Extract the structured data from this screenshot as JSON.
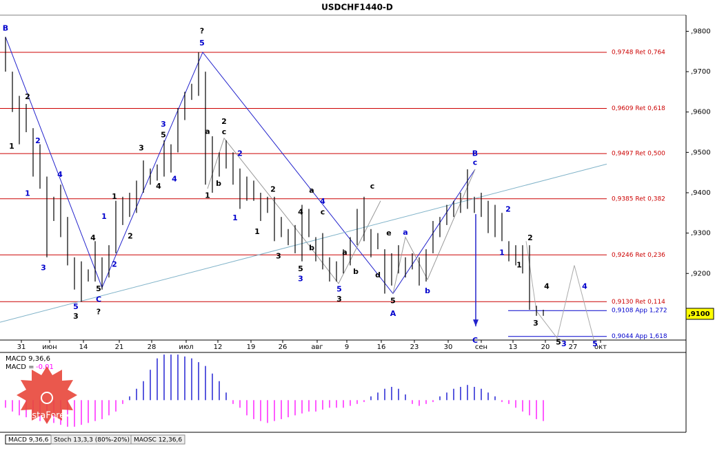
{
  "chart_data": {
    "type": "ohlc",
    "title": "USDCHF1440-D",
    "high": [
      0.9786,
      0.97,
      0.964,
      0.962,
      0.956,
      0.952,
      0.944,
      0.939,
      0.942,
      0.934,
      0.924,
      0.923,
      0.921,
      0.928,
      0.924,
      0.927,
      0.938,
      0.939,
      0.94,
      0.943,
      0.948,
      0.946,
      0.947,
      0.953,
      0.952,
      0.961,
      0.965,
      0.967,
      0.9748,
      0.97,
      0.954,
      0.95,
      0.953,
      0.95,
      0.946,
      0.944,
      0.943,
      0.94,
      0.939,
      0.939,
      0.934,
      0.931,
      0.932,
      0.937,
      0.936,
      0.929,
      0.93,
      0.924,
      0.923,
      0.926,
      0.929,
      0.936,
      0.939,
      0.931,
      0.93,
      0.926,
      0.925,
      0.927,
      0.924,
      0.925,
      0.924,
      0.926,
      0.933,
      0.934,
      0.937,
      0.938,
      0.94,
      0.9458,
      0.939,
      0.94,
      0.938,
      0.937,
      0.935,
      0.928,
      0.927,
      0.927,
      0.927,
      0.912,
      0.911
    ],
    "low": [
      0.97,
      0.96,
      0.952,
      0.955,
      0.944,
      0.941,
      0.924,
      0.933,
      0.929,
      0.922,
      0.916,
      0.913,
      0.918,
      0.918,
      0.916,
      0.919,
      0.925,
      0.932,
      0.934,
      0.935,
      0.94,
      0.942,
      0.943,
      0.944,
      0.945,
      0.95,
      0.958,
      0.963,
      0.964,
      0.942,
      0.94,
      0.944,
      0.946,
      0.942,
      0.936,
      0.938,
      0.938,
      0.933,
      0.935,
      0.928,
      0.929,
      0.927,
      0.925,
      0.923,
      0.929,
      0.923,
      0.921,
      0.918,
      0.918,
      0.92,
      0.922,
      0.927,
      0.928,
      0.924,
      0.926,
      0.915,
      0.917,
      0.92,
      0.919,
      0.921,
      0.917,
      0.918,
      0.925,
      0.929,
      0.932,
      0.934,
      0.935,
      0.936,
      0.935,
      0.934,
      0.93,
      0.929,
      0.928,
      0.923,
      0.922,
      0.92,
      0.911,
      0.9095,
      0.9095
    ],
    "color": "#000000",
    "ylim": [
      0.9035,
      0.984
    ],
    "yticks": [
      {
        "value": 0.98,
        "label": ",9800"
      },
      {
        "value": 0.97,
        "label": ",9700"
      },
      {
        "value": 0.96,
        "label": ",9600"
      },
      {
        "value": 0.95,
        "label": ",9500"
      },
      {
        "value": 0.94,
        "label": ",9400"
      },
      {
        "value": 0.93,
        "label": ",9300"
      },
      {
        "value": 0.92,
        "label": ",9200"
      }
    ],
    "last_price": {
      "value": 0.91,
      "label": ",9100"
    },
    "xticks": [
      {
        "value": 2.3,
        "label": "31"
      },
      {
        "value": 6.4,
        "label": "июн"
      },
      {
        "value": 11.3,
        "label": "14"
      },
      {
        "value": 16.5,
        "label": "21"
      },
      {
        "value": 21.2,
        "label": "28"
      },
      {
        "value": 26.2,
        "label": "июл"
      },
      {
        "value": 30.8,
        "label": "12"
      },
      {
        "value": 35.6,
        "label": "19"
      },
      {
        "value": 40.2,
        "label": "26"
      },
      {
        "value": 45.2,
        "label": "авг"
      },
      {
        "value": 49.5,
        "label": "9"
      },
      {
        "value": 54.5,
        "label": "16"
      },
      {
        "value": 59.3,
        "label": "23"
      },
      {
        "value": 64.2,
        "label": "30"
      },
      {
        "value": 69,
        "label": "сен"
      },
      {
        "value": 73.6,
        "label": "13"
      },
      {
        "value": 78.3,
        "label": "20"
      },
      {
        "value": 82.3,
        "label": "27"
      },
      {
        "value": 86.3,
        "label": "окт"
      }
    ],
    "xlim": [
      -0.8,
      98.7
    ],
    "levels": [
      {
        "value": 0.9748,
        "label": "0,9748 Ret 0,764",
        "color": "#cc0000"
      },
      {
        "value": 0.9609,
        "label": "0,9609 Ret 0,618",
        "color": "#cc0000"
      },
      {
        "value": 0.9497,
        "label": "0,9497 Ret 0,500",
        "color": "#cc0000"
      },
      {
        "value": 0.9385,
        "label": "0,9385 Ret 0,382",
        "color": "#cc0000"
      },
      {
        "value": 0.9246,
        "label": "0,9246 Ret 0,236",
        "color": "#cc0000"
      },
      {
        "value": 0.913,
        "label": "0,9130 Ret 0,114",
        "color": "#cc0000"
      },
      {
        "value": 0.9108,
        "label": "0,9108 App 1,272",
        "color": "#0000cc"
      },
      {
        "value": 0.9044,
        "label": "0,9044 App 1,618",
        "color": "#0000cc"
      }
    ],
    "wave_lines": [
      {
        "color": "#2222cc",
        "points": [
          [
            0,
            0.9786
          ],
          [
            14,
            0.9165
          ],
          [
            28.6,
            0.9748
          ],
          [
            56.2,
            0.915
          ],
          [
            68.1,
            0.9458
          ]
        ]
      },
      {
        "color": "#999999",
        "points": [
          [
            29.3,
            0.941
          ],
          [
            31.7,
            0.9535
          ],
          [
            44,
            0.927
          ],
          [
            48.3,
            0.9175
          ],
          [
            54.4,
            0.938
          ]
        ]
      },
      {
        "color": "#999999",
        "points": [
          [
            56.2,
            0.915
          ],
          [
            58,
            0.929
          ],
          [
            61.2,
            0.9185
          ],
          [
            68.1,
            0.9458
          ]
        ]
      },
      {
        "color": "#aaaaaa",
        "points": [
          [
            75.5,
            0.928
          ],
          [
            77,
            0.9107
          ],
          [
            80,
            0.904
          ],
          [
            82.5,
            0.922
          ],
          [
            85.5,
            0.9025
          ]
        ]
      },
      {
        "color": "#7fb2c8",
        "points": [
          [
            -0.8,
            0.9079
          ],
          [
            87.2,
            0.9471
          ]
        ]
      }
    ],
    "arrow": {
      "color": "#2222cc",
      "from": [
        68.2,
        0.9347
      ],
      "to": [
        68.2,
        0.9069
      ]
    },
    "wave_labels": [
      {
        "text": "B",
        "x": 0,
        "y": 0.9807,
        "color": "#0000cc"
      },
      {
        "text": "2",
        "x": 3.2,
        "y": 0.9637,
        "color": "#000000"
      },
      {
        "text": "1",
        "x": 0.9,
        "y": 0.9514,
        "color": "#000000"
      },
      {
        "text": "2",
        "x": 4.7,
        "y": 0.9528,
        "color": "#0000cc"
      },
      {
        "text": "1",
        "x": 3.2,
        "y": 0.9397,
        "color": "#0000cc"
      },
      {
        "text": "4",
        "x": 7.9,
        "y": 0.9444,
        "color": "#0000cc"
      },
      {
        "text": "3",
        "x": 5.5,
        "y": 0.9213,
        "color": "#0000cc"
      },
      {
        "text": "4",
        "x": 12.7,
        "y": 0.9287,
        "color": "#000000"
      },
      {
        "text": "5",
        "x": 13.5,
        "y": 0.9161,
        "color": "#000000"
      },
      {
        "text": "C",
        "x": 13.5,
        "y": 0.9135,
        "color": "#0000cc"
      },
      {
        "text": "?",
        "x": 13.5,
        "y": 0.9104,
        "color": "#000000"
      },
      {
        "text": "5",
        "x": 10.2,
        "y": 0.9117,
        "color": "#0000cc"
      },
      {
        "text": "3",
        "x": 10.2,
        "y": 0.9093,
        "color": "#000000"
      },
      {
        "text": "1",
        "x": 14.3,
        "y": 0.934,
        "color": "#0000cc"
      },
      {
        "text": "1",
        "x": 15.8,
        "y": 0.939,
        "color": "#000000"
      },
      {
        "text": "2",
        "x": 18.1,
        "y": 0.9292,
        "color": "#000000"
      },
      {
        "text": "2",
        "x": 15.8,
        "y": 0.9222,
        "color": "#0000cc"
      },
      {
        "text": "3",
        "x": 19.7,
        "y": 0.951,
        "color": "#000000"
      },
      {
        "text": "3",
        "x": 22.9,
        "y": 0.9569,
        "color": "#0000cc"
      },
      {
        "text": "5",
        "x": 22.9,
        "y": 0.9542,
        "color": "#000000"
      },
      {
        "text": "4",
        "x": 22.2,
        "y": 0.9415,
        "color": "#000000"
      },
      {
        "text": "4",
        "x": 24.5,
        "y": 0.9433,
        "color": "#0000cc"
      },
      {
        "text": "?",
        "x": 28.5,
        "y": 0.98,
        "color": "#000000"
      },
      {
        "text": "5",
        "x": 28.5,
        "y": 0.977,
        "color": "#0000cc"
      },
      {
        "text": "a",
        "x": 29.3,
        "y": 0.9551,
        "color": "#000000"
      },
      {
        "text": "2",
        "x": 31.7,
        "y": 0.9576,
        "color": "#000000"
      },
      {
        "text": "c",
        "x": 31.7,
        "y": 0.955,
        "color": "#000000"
      },
      {
        "text": "b",
        "x": 30.9,
        "y": 0.9422,
        "color": "#000000"
      },
      {
        "text": "1",
        "x": 29.3,
        "y": 0.9392,
        "color": "#000000"
      },
      {
        "text": "2",
        "x": 34,
        "y": 0.9496,
        "color": "#0000cc"
      },
      {
        "text": "1",
        "x": 33.3,
        "y": 0.9337,
        "color": "#0000cc"
      },
      {
        "text": "2",
        "x": 38.8,
        "y": 0.9408,
        "color": "#000000"
      },
      {
        "text": "1",
        "x": 36.5,
        "y": 0.9303,
        "color": "#000000"
      },
      {
        "text": "3",
        "x": 39.6,
        "y": 0.9242,
        "color": "#000000"
      },
      {
        "text": "4",
        "x": 42.8,
        "y": 0.9351,
        "color": "#000000"
      },
      {
        "text": "a",
        "x": 44.4,
        "y": 0.9405,
        "color": "#000000"
      },
      {
        "text": "4",
        "x": 46,
        "y": 0.9378,
        "color": "#0000cc"
      },
      {
        "text": "c",
        "x": 46,
        "y": 0.9351,
        "color": "#000000"
      },
      {
        "text": "b",
        "x": 44.4,
        "y": 0.9263,
        "color": "#000000"
      },
      {
        "text": "5",
        "x": 42.8,
        "y": 0.9211,
        "color": "#000000"
      },
      {
        "text": "3",
        "x": 42.8,
        "y": 0.9186,
        "color": "#0000cc"
      },
      {
        "text": "a",
        "x": 49.2,
        "y": 0.9252,
        "color": "#000000"
      },
      {
        "text": "b",
        "x": 50.8,
        "y": 0.9204,
        "color": "#000000"
      },
      {
        "text": "5",
        "x": 48.4,
        "y": 0.916,
        "color": "#0000cc"
      },
      {
        "text": "3",
        "x": 48.4,
        "y": 0.9136,
        "color": "#000000"
      },
      {
        "text": "c",
        "x": 53.2,
        "y": 0.9415,
        "color": "#000000"
      },
      {
        "text": "e",
        "x": 55.6,
        "y": 0.9299,
        "color": "#000000"
      },
      {
        "text": "d",
        "x": 54,
        "y": 0.9195,
        "color": "#000000"
      },
      {
        "text": "a",
        "x": 58,
        "y": 0.9301,
        "color": "#0000cc"
      },
      {
        "text": "5",
        "x": 56.2,
        "y": 0.9131,
        "color": "#000000"
      },
      {
        "text": "A",
        "x": 56.2,
        "y": 0.91,
        "color": "#0000cc"
      },
      {
        "text": "b",
        "x": 61.2,
        "y": 0.9156,
        "color": "#0000cc"
      },
      {
        "text": "B",
        "x": 68.1,
        "y": 0.9496,
        "color": "#0000cc"
      },
      {
        "text": "c",
        "x": 68.1,
        "y": 0.9474,
        "color": "#0000cc"
      },
      {
        "text": "C",
        "x": 68.1,
        "y": 0.9033,
        "color": "#0000cc"
      },
      {
        "text": "2",
        "x": 72.9,
        "y": 0.9358,
        "color": "#0000cc"
      },
      {
        "text": "1",
        "x": 72,
        "y": 0.9251,
        "color": "#0000cc"
      },
      {
        "text": "1",
        "x": 74.5,
        "y": 0.922,
        "color": "#000000"
      },
      {
        "text": "2",
        "x": 76.1,
        "y": 0.9287,
        "color": "#000000"
      },
      {
        "text": "3",
        "x": 76.9,
        "y": 0.9076,
        "color": "#000000"
      },
      {
        "text": "4",
        "x": 78.5,
        "y": 0.9167,
        "color": "#000000"
      },
      {
        "text": "4",
        "x": 84,
        "y": 0.9167,
        "color": "#0000cc"
      },
      {
        "text": "5",
        "x": 80.2,
        "y": 0.9029,
        "color": "#000000"
      },
      {
        "text": "3",
        "x": 81,
        "y": 0.9025,
        "color": "#0000cc"
      },
      {
        "text": "5",
        "x": 85.5,
        "y": 0.9025,
        "color": "#0000cc"
      }
    ],
    "macd": {
      "label": "MACD 9,36,6",
      "readout_label": "MACD =",
      "readout_value": -0.01,
      "ylim": [
        -0.0081,
        0.0122
      ],
      "pos_color": "#0000cc",
      "neg_color": "#ff00ff",
      "values": [
        -0.002,
        -0.003,
        -0.004,
        -0.0045,
        -0.005,
        -0.0055,
        -0.006,
        -0.006,
        -0.0065,
        -0.007,
        -0.007,
        -0.0065,
        -0.006,
        -0.0055,
        -0.005,
        -0.004,
        -0.003,
        -0.001,
        0.001,
        0.003,
        0.005,
        0.008,
        0.011,
        0.012,
        0.012,
        0.012,
        0.0115,
        0.011,
        0.01,
        0.009,
        0.007,
        0.005,
        0.002,
        -0.001,
        -0.002,
        -0.004,
        -0.005,
        -0.0055,
        -0.006,
        -0.0055,
        -0.005,
        -0.0045,
        -0.004,
        -0.0035,
        -0.003,
        -0.003,
        -0.0025,
        -0.002,
        -0.002,
        -0.002,
        -0.0015,
        -0.001,
        -0.0005,
        0.001,
        0.002,
        0.003,
        0.0035,
        0.003,
        0.0015,
        -0.001,
        -0.0015,
        -0.001,
        -0.0005,
        0.001,
        0.002,
        0.003,
        0.0035,
        0.004,
        0.0035,
        0.003,
        0.002,
        0.001,
        -0.0005,
        -0.001,
        -0.002,
        -0.003,
        -0.004,
        -0.005,
        -0.0055
      ]
    },
    "tabs": [
      "MACD 9,36,6",
      "Stoch 13,3,3 (80%-20%)",
      "MAOSC 12,36,6"
    ],
    "logo": "InstaForex"
  }
}
